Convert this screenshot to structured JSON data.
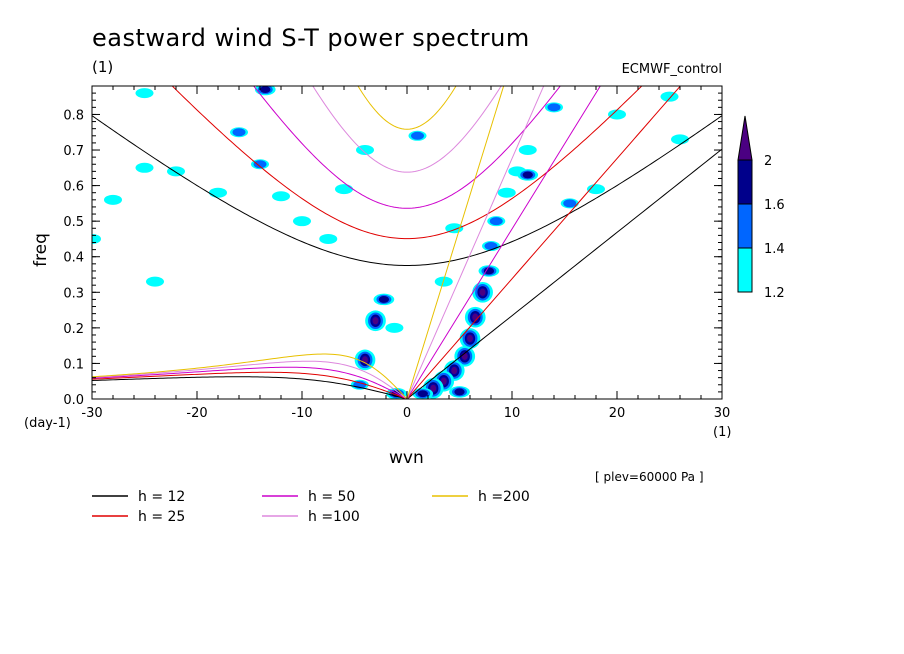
{
  "chart_data": {
    "type": "heatmap",
    "title": "eastward wind S-T power spectrum",
    "subtitle_left": "(1)",
    "subtitle_right": "ECMWF_control",
    "xlabel": "wvn",
    "ylabel": "freq",
    "x_unit_left": "(day-1)",
    "x_unit_right": "(1)",
    "annotation": "[ plev=60000 Pa ]",
    "xlim": [
      -30,
      30
    ],
    "ylim": [
      0,
      0.88
    ],
    "xticks": [
      "-30",
      "-20",
      "-10",
      "0",
      "10",
      "20",
      "30"
    ],
    "yticks": [
      "0.0",
      "0.1",
      "0.2",
      "0.3",
      "0.4",
      "0.5",
      "0.6",
      "0.7",
      "0.8"
    ],
    "colorbar": {
      "levels": [
        "1.2",
        "1.4",
        "1.6",
        "2"
      ],
      "colors": [
        "#00ffff",
        "#0066ff",
        "#00008b",
        "#4b0082"
      ]
    },
    "dispersion_curves": [
      {
        "label": "h = 12",
        "h": 12,
        "color": "#000000"
      },
      {
        "label": "h = 25",
        "h": 25,
        "color": "#e00000"
      },
      {
        "label": "h = 50",
        "h": 50,
        "color": "#cc00cc"
      },
      {
        "label": "h =100",
        "h": 100,
        "color": "#dd88dd"
      },
      {
        "label": "h =200",
        "h": 200,
        "color": "#e8c000"
      }
    ],
    "blobs": [
      {
        "x": 6.5,
        "y": 0.23,
        "level": 4
      },
      {
        "x": 7.2,
        "y": 0.3,
        "level": 4
      },
      {
        "x": 6.0,
        "y": 0.17,
        "level": 4
      },
      {
        "x": 5.5,
        "y": 0.12,
        "level": 4
      },
      {
        "x": 4.5,
        "y": 0.08,
        "level": 4
      },
      {
        "x": 3.5,
        "y": 0.05,
        "level": 4
      },
      {
        "x": 2.5,
        "y": 0.03,
        "level": 4
      },
      {
        "x": 1.5,
        "y": 0.015,
        "level": 3
      },
      {
        "x": 7.8,
        "y": 0.36,
        "level": 3
      },
      {
        "x": 8.0,
        "y": 0.43,
        "level": 2
      },
      {
        "x": 8.5,
        "y": 0.5,
        "level": 2
      },
      {
        "x": 9.5,
        "y": 0.58,
        "level": 1
      },
      {
        "x": 10.5,
        "y": 0.64,
        "level": 1
      },
      {
        "x": 11.5,
        "y": 0.7,
        "level": 1
      },
      {
        "x": -4.0,
        "y": 0.11,
        "level": 4
      },
      {
        "x": -3.0,
        "y": 0.22,
        "level": 4
      },
      {
        "x": -2.2,
        "y": 0.28,
        "level": 3
      },
      {
        "x": -4.5,
        "y": 0.04,
        "level": 2
      },
      {
        "x": -1.0,
        "y": 0.015,
        "level": 3
      },
      {
        "x": 5.0,
        "y": 0.02,
        "level": 3
      },
      {
        "x": -1.2,
        "y": 0.2,
        "level": 1
      },
      {
        "x": 1.0,
        "y": 0.74,
        "level": 2
      },
      {
        "x": 15.5,
        "y": 0.55,
        "level": 2
      },
      {
        "x": 14.0,
        "y": 0.82,
        "level": 2
      },
      {
        "x": 11.5,
        "y": 0.63,
        "level": 3
      },
      {
        "x": -16.0,
        "y": 0.75,
        "level": 2
      },
      {
        "x": -14.0,
        "y": 0.66,
        "level": 2
      },
      {
        "x": -12.0,
        "y": 0.57,
        "level": 1
      },
      {
        "x": -13.5,
        "y": 0.87,
        "level": 3
      },
      {
        "x": -10.0,
        "y": 0.5,
        "level": 1
      },
      {
        "x": -7.5,
        "y": 0.45,
        "level": 1
      },
      {
        "x": -28.0,
        "y": 0.56,
        "level": 1
      },
      {
        "x": -25.0,
        "y": 0.65,
        "level": 1
      },
      {
        "x": -22.0,
        "y": 0.64,
        "level": 1
      },
      {
        "x": -24.0,
        "y": 0.33,
        "level": 1
      },
      {
        "x": -18.0,
        "y": 0.58,
        "level": 1
      },
      {
        "x": -6.0,
        "y": 0.59,
        "level": 1
      },
      {
        "x": -4.0,
        "y": 0.7,
        "level": 1
      },
      {
        "x": -25.0,
        "y": 0.86,
        "level": 1
      },
      {
        "x": 3.5,
        "y": 0.33,
        "level": 1
      },
      {
        "x": 4.5,
        "y": 0.48,
        "level": 1
      },
      {
        "x": 18.0,
        "y": 0.59,
        "level": 1
      },
      {
        "x": 20.0,
        "y": 0.8,
        "level": 1
      },
      {
        "x": 25.0,
        "y": 0.85,
        "level": 1
      },
      {
        "x": 26.0,
        "y": 0.73,
        "level": 1
      },
      {
        "x": -30.0,
        "y": 0.45,
        "level": 1
      }
    ]
  },
  "legend_items": [
    {
      "label": "h = 12",
      "color": "#000000"
    },
    {
      "label": "h = 25",
      "color": "#e00000"
    },
    {
      "label": "h = 50",
      "color": "#cc00cc"
    },
    {
      "label": "h =100",
      "color": "#dd88dd"
    },
    {
      "label": "h =200",
      "color": "#e8c000"
    }
  ]
}
